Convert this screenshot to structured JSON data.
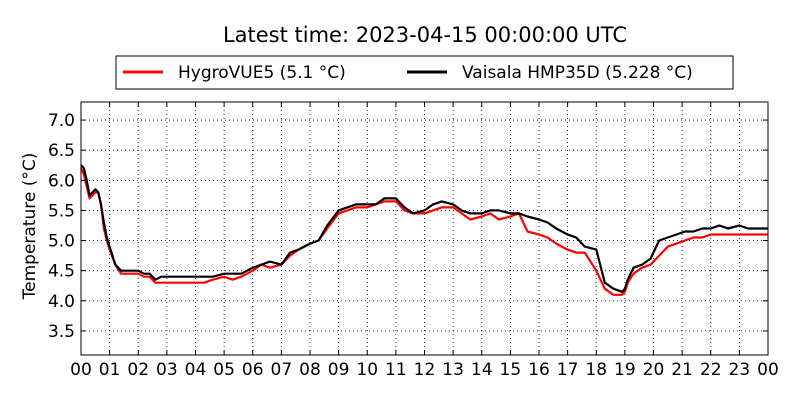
{
  "chart_data": {
    "type": "line",
    "title": "Latest time: 2023-04-15 00:00:00 UTC",
    "xlabel": "",
    "ylabel": "Temperature (°C)",
    "xlim": [
      0,
      24
    ],
    "ylim": [
      3.1,
      7.3
    ],
    "x_tick_labels": [
      "00",
      "01",
      "02",
      "03",
      "04",
      "05",
      "06",
      "07",
      "08",
      "09",
      "10",
      "11",
      "12",
      "13",
      "14",
      "15",
      "16",
      "17",
      "18",
      "19",
      "20",
      "21",
      "22",
      "23",
      "00"
    ],
    "y_ticks": [
      3.5,
      4.0,
      4.5,
      5.0,
      5.5,
      6.0,
      6.5,
      7.0
    ],
    "y_tick_labels": [
      "3.5",
      "4.0",
      "4.5",
      "5.0",
      "5.5",
      "6.0",
      "6.5",
      "7.0"
    ],
    "grid": true,
    "legend_position": "top",
    "series": [
      {
        "name": "HygroVUE5 (5.1 °C)",
        "color": "#ff0000",
        "x": [
          0.0,
          0.1,
          0.2,
          0.3,
          0.4,
          0.5,
          0.6,
          0.7,
          0.8,
          0.9,
          1.0,
          1.2,
          1.4,
          1.6,
          1.8,
          2.0,
          2.2,
          2.4,
          2.6,
          2.8,
          3.0,
          3.2,
          3.4,
          3.6,
          3.8,
          4.0,
          4.3,
          4.6,
          5.0,
          5.3,
          5.6,
          6.0,
          6.3,
          6.6,
          7.0,
          7.3,
          7.6,
          8.0,
          8.3,
          8.6,
          9.0,
          9.3,
          9.6,
          10.0,
          10.3,
          10.6,
          11.0,
          11.3,
          11.6,
          12.0,
          12.3,
          12.6,
          13.0,
          13.3,
          13.6,
          14.0,
          14.3,
          14.6,
          15.0,
          15.3,
          15.6,
          16.0,
          16.3,
          16.6,
          17.0,
          17.3,
          17.6,
          18.0,
          18.3,
          18.6,
          18.9,
          19.0,
          19.1,
          19.3,
          19.6,
          19.9,
          20.2,
          20.5,
          20.8,
          21.1,
          21.4,
          21.7,
          22.0,
          22.3,
          22.6,
          23.0,
          23.3,
          23.6,
          24.0
        ],
        "y": [
          6.2,
          6.1,
          5.9,
          5.7,
          5.75,
          5.8,
          5.8,
          5.6,
          5.2,
          5.0,
          4.85,
          4.6,
          4.45,
          4.45,
          4.45,
          4.45,
          4.4,
          4.4,
          4.3,
          4.3,
          4.3,
          4.3,
          4.3,
          4.3,
          4.3,
          4.3,
          4.3,
          4.35,
          4.4,
          4.35,
          4.4,
          4.5,
          4.6,
          4.55,
          4.6,
          4.75,
          4.85,
          4.95,
          5.0,
          5.2,
          5.45,
          5.5,
          5.55,
          5.55,
          5.6,
          5.65,
          5.65,
          5.5,
          5.45,
          5.45,
          5.5,
          5.55,
          5.55,
          5.45,
          5.35,
          5.4,
          5.45,
          5.35,
          5.4,
          5.45,
          5.15,
          5.1,
          5.05,
          4.95,
          4.85,
          4.8,
          4.8,
          4.5,
          4.2,
          4.1,
          4.1,
          4.15,
          4.3,
          4.45,
          4.55,
          4.6,
          4.75,
          4.9,
          4.95,
          5.0,
          5.05,
          5.05,
          5.1,
          5.1,
          5.1,
          5.1,
          5.1,
          5.1,
          5.1
        ]
      },
      {
        "name": "Vaisala HMP35D (5.228 °C)",
        "color": "#000000",
        "x": [
          0.0,
          0.1,
          0.2,
          0.3,
          0.4,
          0.5,
          0.6,
          0.7,
          0.8,
          0.9,
          1.0,
          1.2,
          1.4,
          1.6,
          1.8,
          2.0,
          2.2,
          2.4,
          2.6,
          2.8,
          3.0,
          3.2,
          3.4,
          3.6,
          3.8,
          4.0,
          4.3,
          4.6,
          5.0,
          5.3,
          5.6,
          6.0,
          6.3,
          6.6,
          7.0,
          7.3,
          7.6,
          8.0,
          8.3,
          8.6,
          9.0,
          9.3,
          9.6,
          10.0,
          10.3,
          10.6,
          11.0,
          11.3,
          11.6,
          12.0,
          12.3,
          12.6,
          13.0,
          13.3,
          13.6,
          14.0,
          14.3,
          14.6,
          15.0,
          15.3,
          15.6,
          16.0,
          16.3,
          16.6,
          17.0,
          17.3,
          17.6,
          18.0,
          18.3,
          18.6,
          18.9,
          19.0,
          19.1,
          19.3,
          19.6,
          19.9,
          20.2,
          20.5,
          20.8,
          21.1,
          21.4,
          21.7,
          22.0,
          22.3,
          22.6,
          23.0,
          23.3,
          23.6,
          24.0
        ],
        "y": [
          6.25,
          6.2,
          6.0,
          5.75,
          5.8,
          5.85,
          5.8,
          5.6,
          5.3,
          5.05,
          4.9,
          4.6,
          4.5,
          4.5,
          4.5,
          4.5,
          4.45,
          4.45,
          4.35,
          4.4,
          4.4,
          4.4,
          4.4,
          4.4,
          4.4,
          4.4,
          4.4,
          4.4,
          4.45,
          4.45,
          4.45,
          4.55,
          4.6,
          4.65,
          4.6,
          4.8,
          4.85,
          4.95,
          5.0,
          5.25,
          5.5,
          5.55,
          5.6,
          5.6,
          5.6,
          5.7,
          5.7,
          5.55,
          5.45,
          5.5,
          5.6,
          5.65,
          5.6,
          5.5,
          5.45,
          5.45,
          5.5,
          5.5,
          5.45,
          5.45,
          5.4,
          5.35,
          5.3,
          5.2,
          5.1,
          5.05,
          4.9,
          4.85,
          4.3,
          4.2,
          4.15,
          4.2,
          4.35,
          4.55,
          4.6,
          4.7,
          5.0,
          5.05,
          5.1,
          5.15,
          5.15,
          5.2,
          5.2,
          5.25,
          5.2,
          5.25,
          5.2,
          5.2,
          5.2
        ]
      }
    ]
  }
}
